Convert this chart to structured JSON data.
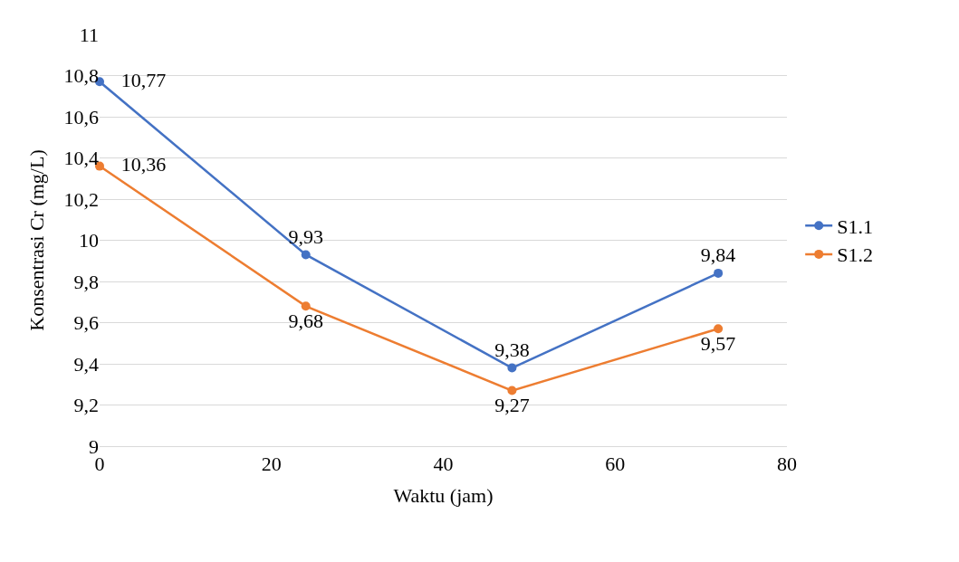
{
  "chart_data": {
    "type": "line",
    "xlabel": "Waktu (jam)",
    "ylabel": "Konsentrasi Cr (mg/L)",
    "x": [
      0,
      24,
      48,
      72
    ],
    "series": [
      {
        "name": "S1.1",
        "color": "#4472c4",
        "values": [
          10.77,
          9.93,
          9.38,
          9.84
        ],
        "value_labels": [
          "10,77",
          "9,93",
          "9,38",
          "9,84"
        ]
      },
      {
        "name": "S1.2",
        "color": "#ed7d31",
        "values": [
          10.36,
          9.68,
          9.27,
          9.57
        ],
        "value_labels": [
          "10,36",
          "9,68",
          "9,27",
          "9,57"
        ]
      }
    ],
    "xlim": [
      0,
      80
    ],
    "xticks": [
      0,
      20,
      40,
      60,
      80
    ],
    "ylim": [
      9,
      11
    ],
    "yticks": [
      9,
      {
        "value": 9.2,
        "label": "9,2"
      },
      {
        "value": 9.4,
        "label": "9,4"
      },
      {
        "value": 9.6,
        "label": "9,6"
      },
      {
        "value": 9.8,
        "label": "9,8"
      },
      10,
      {
        "value": 10.2,
        "label": "10,2"
      },
      {
        "value": 10.4,
        "label": "10,4"
      },
      {
        "value": 10.6,
        "label": "10,6"
      },
      {
        "value": 10.8,
        "label": "10,8"
      },
      11
    ],
    "grid": "y",
    "legend": "right",
    "marker": "circle",
    "line_style": "solid"
  }
}
